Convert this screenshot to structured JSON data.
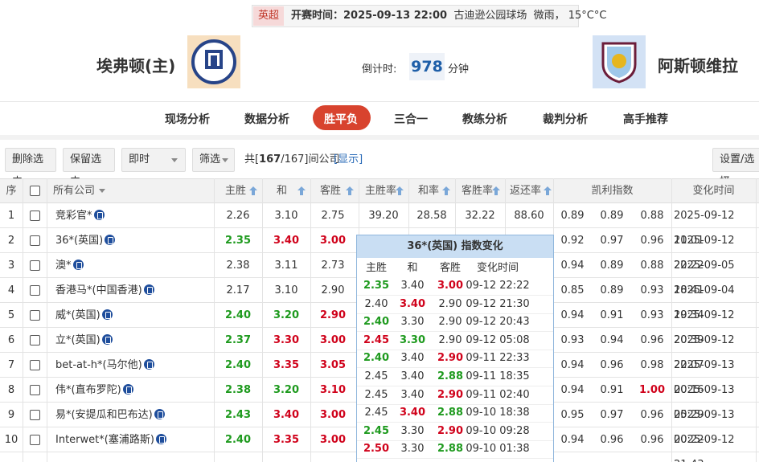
{
  "match": {
    "league": "英超",
    "kickoff_label": "开赛时间：",
    "kickoff": "2025-09-13 22:00",
    "venue": "古迪逊公园球场",
    "weather": "微雨， 15°C°C",
    "home": "埃弗顿(主)",
    "away": "阿斯顿维拉",
    "countdown_label": "倒计时:",
    "countdown": "978",
    "countdown_unit": "分钟"
  },
  "tabs": {
    "items": [
      "现场分析",
      "数据分析",
      "胜平负",
      "三合一",
      "教练分析",
      "裁判分析",
      "高手推荐"
    ],
    "active": 2
  },
  "toolbar": {
    "buttons": [
      "删除选中",
      "保留选中"
    ],
    "mode": "即时",
    "filter": "筛选",
    "count_prefix": "共[",
    "count": "167",
    "count_suffix": "/167]间公司",
    "show": "[显示]",
    "settings": "设置/选择"
  },
  "table": {
    "headers": [
      "序",
      "所有公司",
      "主胜",
      "和",
      "客胜",
      "主胜率",
      "和率",
      "客胜率",
      "返还率",
      "凯利指数",
      "变化时间"
    ],
    "rows": [
      {
        "no": "1",
        "company": "竞彩官*",
        "odds": [
          "2.26",
          "3.10",
          "2.75"
        ],
        "odds_colors": [
          "#333333",
          "#333333",
          "#333333"
        ],
        "rates": [
          "39.20",
          "28.58",
          "32.22",
          "88.60"
        ],
        "kelly": [
          "0.89",
          "0.89",
          "0.88"
        ],
        "kelly_colors": [
          "#333333",
          "#333333",
          "#333333"
        ],
        "time": "2025-09-12 11:01"
      },
      {
        "no": "2",
        "company": "36*(英国)",
        "odds": [
          "2.35",
          "3.40",
          "3.00"
        ],
        "odds_colors": [
          "#1e9a1e",
          "#d0021b",
          "#d0021b"
        ],
        "kelly": [
          "0.92",
          "0.97",
          "0.96"
        ],
        "kelly_colors": [
          "#333333",
          "#333333",
          "#333333"
        ],
        "time": "2025-09-12 22:22"
      },
      {
        "no": "3",
        "company": "澳*",
        "odds": [
          "2.38",
          "3.11",
          "2.73"
        ],
        "odds_colors": [
          "#333333",
          "#333333",
          "#333333"
        ],
        "kelly": [
          "0.94",
          "0.89",
          "0.88"
        ],
        "kelly_colors": [
          "#333333",
          "#333333",
          "#333333"
        ],
        "time": "2025-09-05 18:41"
      },
      {
        "no": "4",
        "company": "香港马*(中国香港)",
        "odds": [
          "2.17",
          "3.10",
          "2.90"
        ],
        "odds_colors": [
          "#333333",
          "#333333",
          "#333333"
        ],
        "kelly": [
          "0.85",
          "0.89",
          "0.93"
        ],
        "kelly_colors": [
          "#333333",
          "#333333",
          "#333333"
        ],
        "time": "2025-09-04 19:34"
      },
      {
        "no": "5",
        "company": "威*(英国)",
        "odds": [
          "2.40",
          "3.20",
          "2.90"
        ],
        "odds_colors": [
          "#1e9a1e",
          "#1e9a1e",
          "#d0021b"
        ],
        "kelly": [
          "0.94",
          "0.91",
          "0.93"
        ],
        "kelly_colors": [
          "#333333",
          "#333333",
          "#333333"
        ],
        "time": "2025-09-12 20:39"
      },
      {
        "no": "6",
        "company": "立*(英国)",
        "odds": [
          "2.37",
          "3.30",
          "3.00"
        ],
        "odds_colors": [
          "#1e9a1e",
          "#d0021b",
          "#d0021b"
        ],
        "kelly": [
          "0.93",
          "0.94",
          "0.96"
        ],
        "kelly_colors": [
          "#333333",
          "#333333",
          "#333333"
        ],
        "time": "2025-09-12 22:07"
      },
      {
        "no": "7",
        "company": "bet-at-h*(马尔他)",
        "odds": [
          "2.40",
          "3.35",
          "3.05"
        ],
        "odds_colors": [
          "#1e9a1e",
          "#d0021b",
          "#d0021b"
        ],
        "kelly": [
          "0.94",
          "0.96",
          "0.98"
        ],
        "kelly_colors": [
          "#333333",
          "#333333",
          "#333333"
        ],
        "time": "2025-09-13 00:16"
      },
      {
        "no": "8",
        "company": "伟*(直布罗陀)",
        "odds": [
          "2.38",
          "3.20",
          "3.10"
        ],
        "odds_colors": [
          "#1e9a1e",
          "#1e9a1e",
          "#d0021b"
        ],
        "kelly": [
          "0.94",
          "0.91",
          "1.00"
        ],
        "kelly_colors": [
          "#333333",
          "#333333",
          "#d0021b"
        ],
        "time": "2025-09-13 05:29"
      },
      {
        "no": "9",
        "company": "易*(安提瓜和巴布达)",
        "odds": [
          "2.43",
          "3.40",
          "3.00"
        ],
        "odds_colors": [
          "#1e9a1e",
          "#d0021b",
          "#d0021b"
        ],
        "kelly": [
          "0.95",
          "0.97",
          "0.96"
        ],
        "kelly_colors": [
          "#333333",
          "#333333",
          "#333333"
        ],
        "time": "2025-09-13 00:22"
      },
      {
        "no": "10",
        "company": "Interwet*(塞浦路斯)",
        "odds": [
          "2.40",
          "3.35",
          "3.00"
        ],
        "odds_colors": [
          "#1e9a1e",
          "#d0021b",
          "#d0021b"
        ],
        "kelly": [
          "0.94",
          "0.96",
          "0.96"
        ],
        "kelly_colors": [
          "#333333",
          "#333333",
          "#333333"
        ],
        "time": "2025-09-12 21:43"
      }
    ]
  },
  "popup": {
    "title": "36*(英国) 指数变化",
    "headers": [
      "主胜",
      "和",
      "客胜",
      "变化时间"
    ],
    "rows": [
      {
        "odds": [
          "2.35",
          "3.40",
          "3.00"
        ],
        "colors": [
          "#1e9a1e",
          "#333333",
          "#d0021b"
        ],
        "time": "09-12 22:22"
      },
      {
        "odds": [
          "2.40",
          "3.40",
          "2.90"
        ],
        "colors": [
          "#333333",
          "#d0021b",
          "#333333"
        ],
        "time": "09-12 21:30"
      },
      {
        "odds": [
          "2.40",
          "3.30",
          "2.90"
        ],
        "colors": [
          "#1e9a1e",
          "#333333",
          "#333333"
        ],
        "time": "09-12 20:43"
      },
      {
        "odds": [
          "2.45",
          "3.30",
          "2.90"
        ],
        "colors": [
          "#d0021b",
          "#1e9a1e",
          "#333333"
        ],
        "time": "09-12 05:08"
      },
      {
        "odds": [
          "2.40",
          "3.40",
          "2.90"
        ],
        "colors": [
          "#1e9a1e",
          "#333333",
          "#d0021b"
        ],
        "time": "09-11 22:33"
      },
      {
        "odds": [
          "2.45",
          "3.40",
          "2.88"
        ],
        "colors": [
          "#333333",
          "#333333",
          "#1e9a1e"
        ],
        "time": "09-11 18:35"
      },
      {
        "odds": [
          "2.45",
          "3.40",
          "2.90"
        ],
        "colors": [
          "#333333",
          "#333333",
          "#d0021b"
        ],
        "time": "09-11 02:40"
      },
      {
        "odds": [
          "2.45",
          "3.40",
          "2.88"
        ],
        "colors": [
          "#333333",
          "#d0021b",
          "#1e9a1e"
        ],
        "time": "09-10 18:38"
      },
      {
        "odds": [
          "2.45",
          "3.30",
          "2.90"
        ],
        "colors": [
          "#1e9a1e",
          "#333333",
          "#d0021b"
        ],
        "time": "09-10 09:28"
      },
      {
        "odds": [
          "2.50",
          "3.30",
          "2.88"
        ],
        "colors": [
          "#d0021b",
          "#333333",
          "#1e9a1e"
        ],
        "time": "09-10 01:38"
      }
    ]
  }
}
